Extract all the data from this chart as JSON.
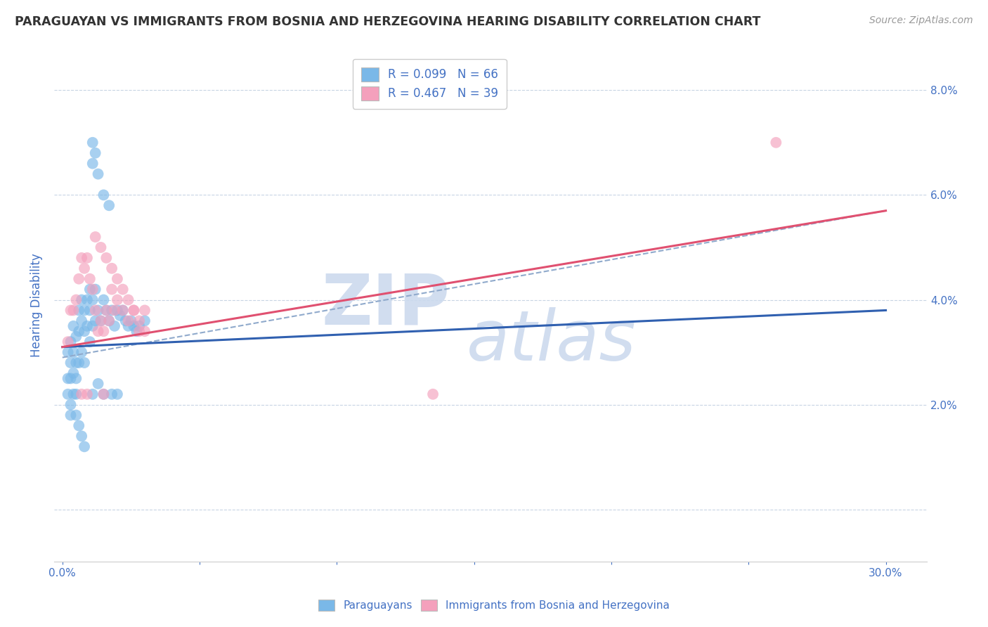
{
  "title": "PARAGUAYAN VS IMMIGRANTS FROM BOSNIA AND HERZEGOVINA HEARING DISABILITY CORRELATION CHART",
  "source_text": "Source: ZipAtlas.com",
  "ylabel": "Hearing Disability",
  "ylim": [
    -0.01,
    0.088
  ],
  "xlim": [
    -0.003,
    0.315
  ],
  "legend_entry1": "R = 0.099   N = 66",
  "legend_entry2": "R = 0.467   N = 39",
  "color_blue": "#7ab8e8",
  "color_pink": "#f4a0bc",
  "color_blue_line": "#3060b0",
  "color_pink_line": "#e05070",
  "color_dashed": "#90aacc",
  "watermark_text1": "ZIP",
  "watermark_text2": "atlas",
  "watermark_color": "#ccdaee",
  "background_color": "#ffffff",
  "grid_color": "#c8d4e4",
  "title_color": "#333333",
  "tick_label_color": "#4472c4",
  "blue_line_x": [
    0.0,
    0.3
  ],
  "blue_line_y": [
    0.031,
    0.038
  ],
  "pink_line_x": [
    0.0,
    0.3
  ],
  "pink_line_y": [
    0.031,
    0.057
  ],
  "dashed_line_x": [
    0.0,
    0.3
  ],
  "dashed_line_y": [
    0.031,
    0.057
  ],
  "blue_scatter_x": [
    0.002,
    0.002,
    0.002,
    0.003,
    0.003,
    0.003,
    0.003,
    0.004,
    0.004,
    0.004,
    0.004,
    0.005,
    0.005,
    0.005,
    0.005,
    0.006,
    0.006,
    0.006,
    0.007,
    0.007,
    0.007,
    0.008,
    0.008,
    0.008,
    0.009,
    0.009,
    0.01,
    0.01,
    0.01,
    0.011,
    0.011,
    0.012,
    0.012,
    0.013,
    0.014,
    0.015,
    0.016,
    0.017,
    0.018,
    0.019,
    0.02,
    0.021,
    0.022,
    0.023,
    0.024,
    0.025,
    0.026,
    0.027,
    0.028,
    0.03,
    0.011,
    0.013,
    0.015,
    0.018,
    0.02,
    0.011,
    0.011,
    0.012,
    0.013,
    0.015,
    0.017,
    0.003,
    0.005,
    0.006,
    0.007,
    0.008
  ],
  "blue_scatter_y": [
    0.03,
    0.025,
    0.022,
    0.032,
    0.028,
    0.025,
    0.02,
    0.035,
    0.03,
    0.026,
    0.022,
    0.033,
    0.028,
    0.025,
    0.022,
    0.038,
    0.034,
    0.028,
    0.04,
    0.036,
    0.03,
    0.038,
    0.034,
    0.028,
    0.04,
    0.035,
    0.042,
    0.038,
    0.032,
    0.04,
    0.035,
    0.042,
    0.036,
    0.038,
    0.036,
    0.04,
    0.038,
    0.036,
    0.038,
    0.035,
    0.038,
    0.037,
    0.038,
    0.036,
    0.035,
    0.036,
    0.035,
    0.034,
    0.035,
    0.036,
    0.022,
    0.024,
    0.022,
    0.022,
    0.022,
    0.066,
    0.07,
    0.068,
    0.064,
    0.06,
    0.058,
    0.018,
    0.018,
    0.016,
    0.014,
    0.012
  ],
  "pink_scatter_x": [
    0.002,
    0.003,
    0.004,
    0.005,
    0.006,
    0.007,
    0.008,
    0.009,
    0.01,
    0.011,
    0.012,
    0.013,
    0.014,
    0.015,
    0.016,
    0.017,
    0.018,
    0.019,
    0.02,
    0.022,
    0.024,
    0.026,
    0.028,
    0.03,
    0.012,
    0.014,
    0.016,
    0.018,
    0.02,
    0.022,
    0.024,
    0.026,
    0.028,
    0.03,
    0.007,
    0.009,
    0.135,
    0.26,
    0.015
  ],
  "pink_scatter_y": [
    0.032,
    0.038,
    0.038,
    0.04,
    0.044,
    0.048,
    0.046,
    0.048,
    0.044,
    0.042,
    0.038,
    0.034,
    0.036,
    0.034,
    0.038,
    0.036,
    0.042,
    0.038,
    0.044,
    0.042,
    0.04,
    0.038,
    0.036,
    0.038,
    0.052,
    0.05,
    0.048,
    0.046,
    0.04,
    0.038,
    0.036,
    0.038,
    0.034,
    0.034,
    0.022,
    0.022,
    0.022,
    0.07,
    0.022
  ]
}
